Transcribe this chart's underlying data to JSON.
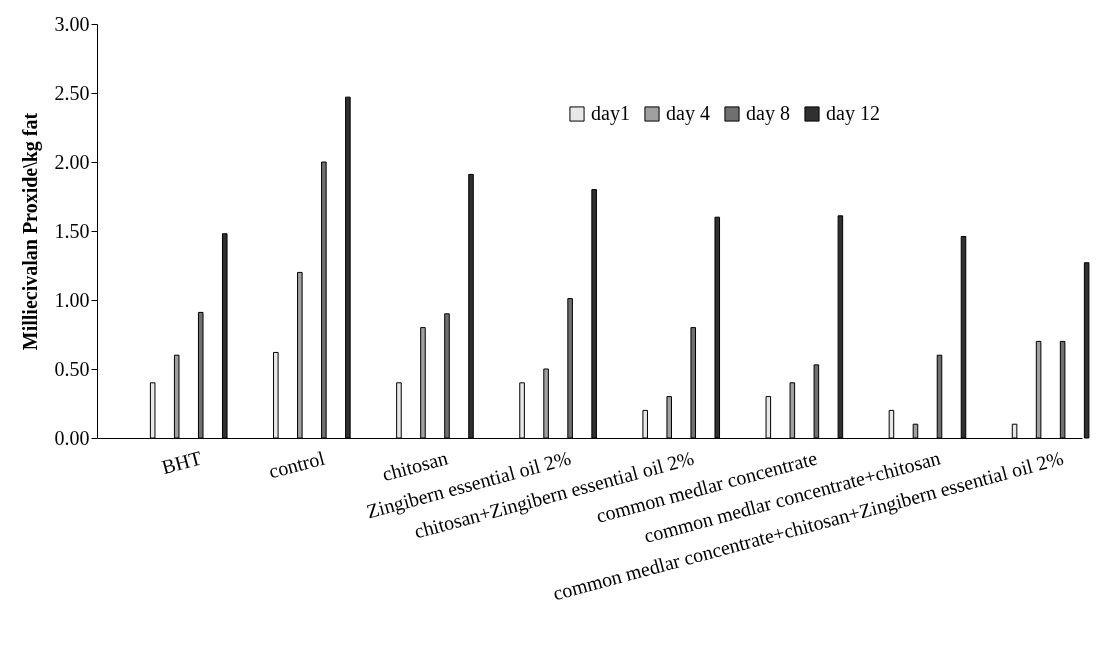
{
  "chart_data": {
    "type": "bar",
    "ylabel": "Milliecivalan Proxide\\kg fat",
    "categories": [
      "BHT",
      "control",
      "chitosan",
      "Zingibern essential oil 2%",
      "chitosan+Zingibern essential oil 2%",
      "common medlar concentrate",
      "common medlar concentrate+chitosan",
      "common medlar concentrate+chitosan+Zingibern essential oil 2%"
    ],
    "series": [
      {
        "name": "day1",
        "color": "#e8e8e8",
        "values": [
          0.4,
          0.62,
          0.4,
          0.4,
          0.2,
          0.3,
          0.2,
          0.1
        ]
      },
      {
        "name": "day 4",
        "color": "#a0a0a0",
        "values": [
          0.6,
          1.2,
          0.8,
          0.5,
          0.3,
          0.4,
          0.1,
          0.7
        ]
      },
      {
        "name": "day 8",
        "color": "#707070",
        "values": [
          0.91,
          2.0,
          0.9,
          1.01,
          0.8,
          0.53,
          0.6,
          0.7
        ]
      },
      {
        "name": "day 12",
        "color": "#303030",
        "values": [
          1.48,
          2.47,
          1.91,
          1.8,
          1.6,
          1.61,
          1.46,
          1.27
        ]
      }
    ],
    "ylim": [
      0,
      3
    ],
    "yticks": [
      {
        "value": 0,
        "label": "0.00"
      },
      {
        "value": 0.5,
        "label": "0.50"
      },
      {
        "value": 1,
        "label": "1.00"
      },
      {
        "value": 1.5,
        "label": "1.50"
      },
      {
        "value": 2,
        "label": "2.00"
      },
      {
        "value": 2.5,
        "label": "2.50"
      },
      {
        "value": 3,
        "label": "3.00"
      }
    ],
    "grid": false,
    "legend": "top"
  }
}
